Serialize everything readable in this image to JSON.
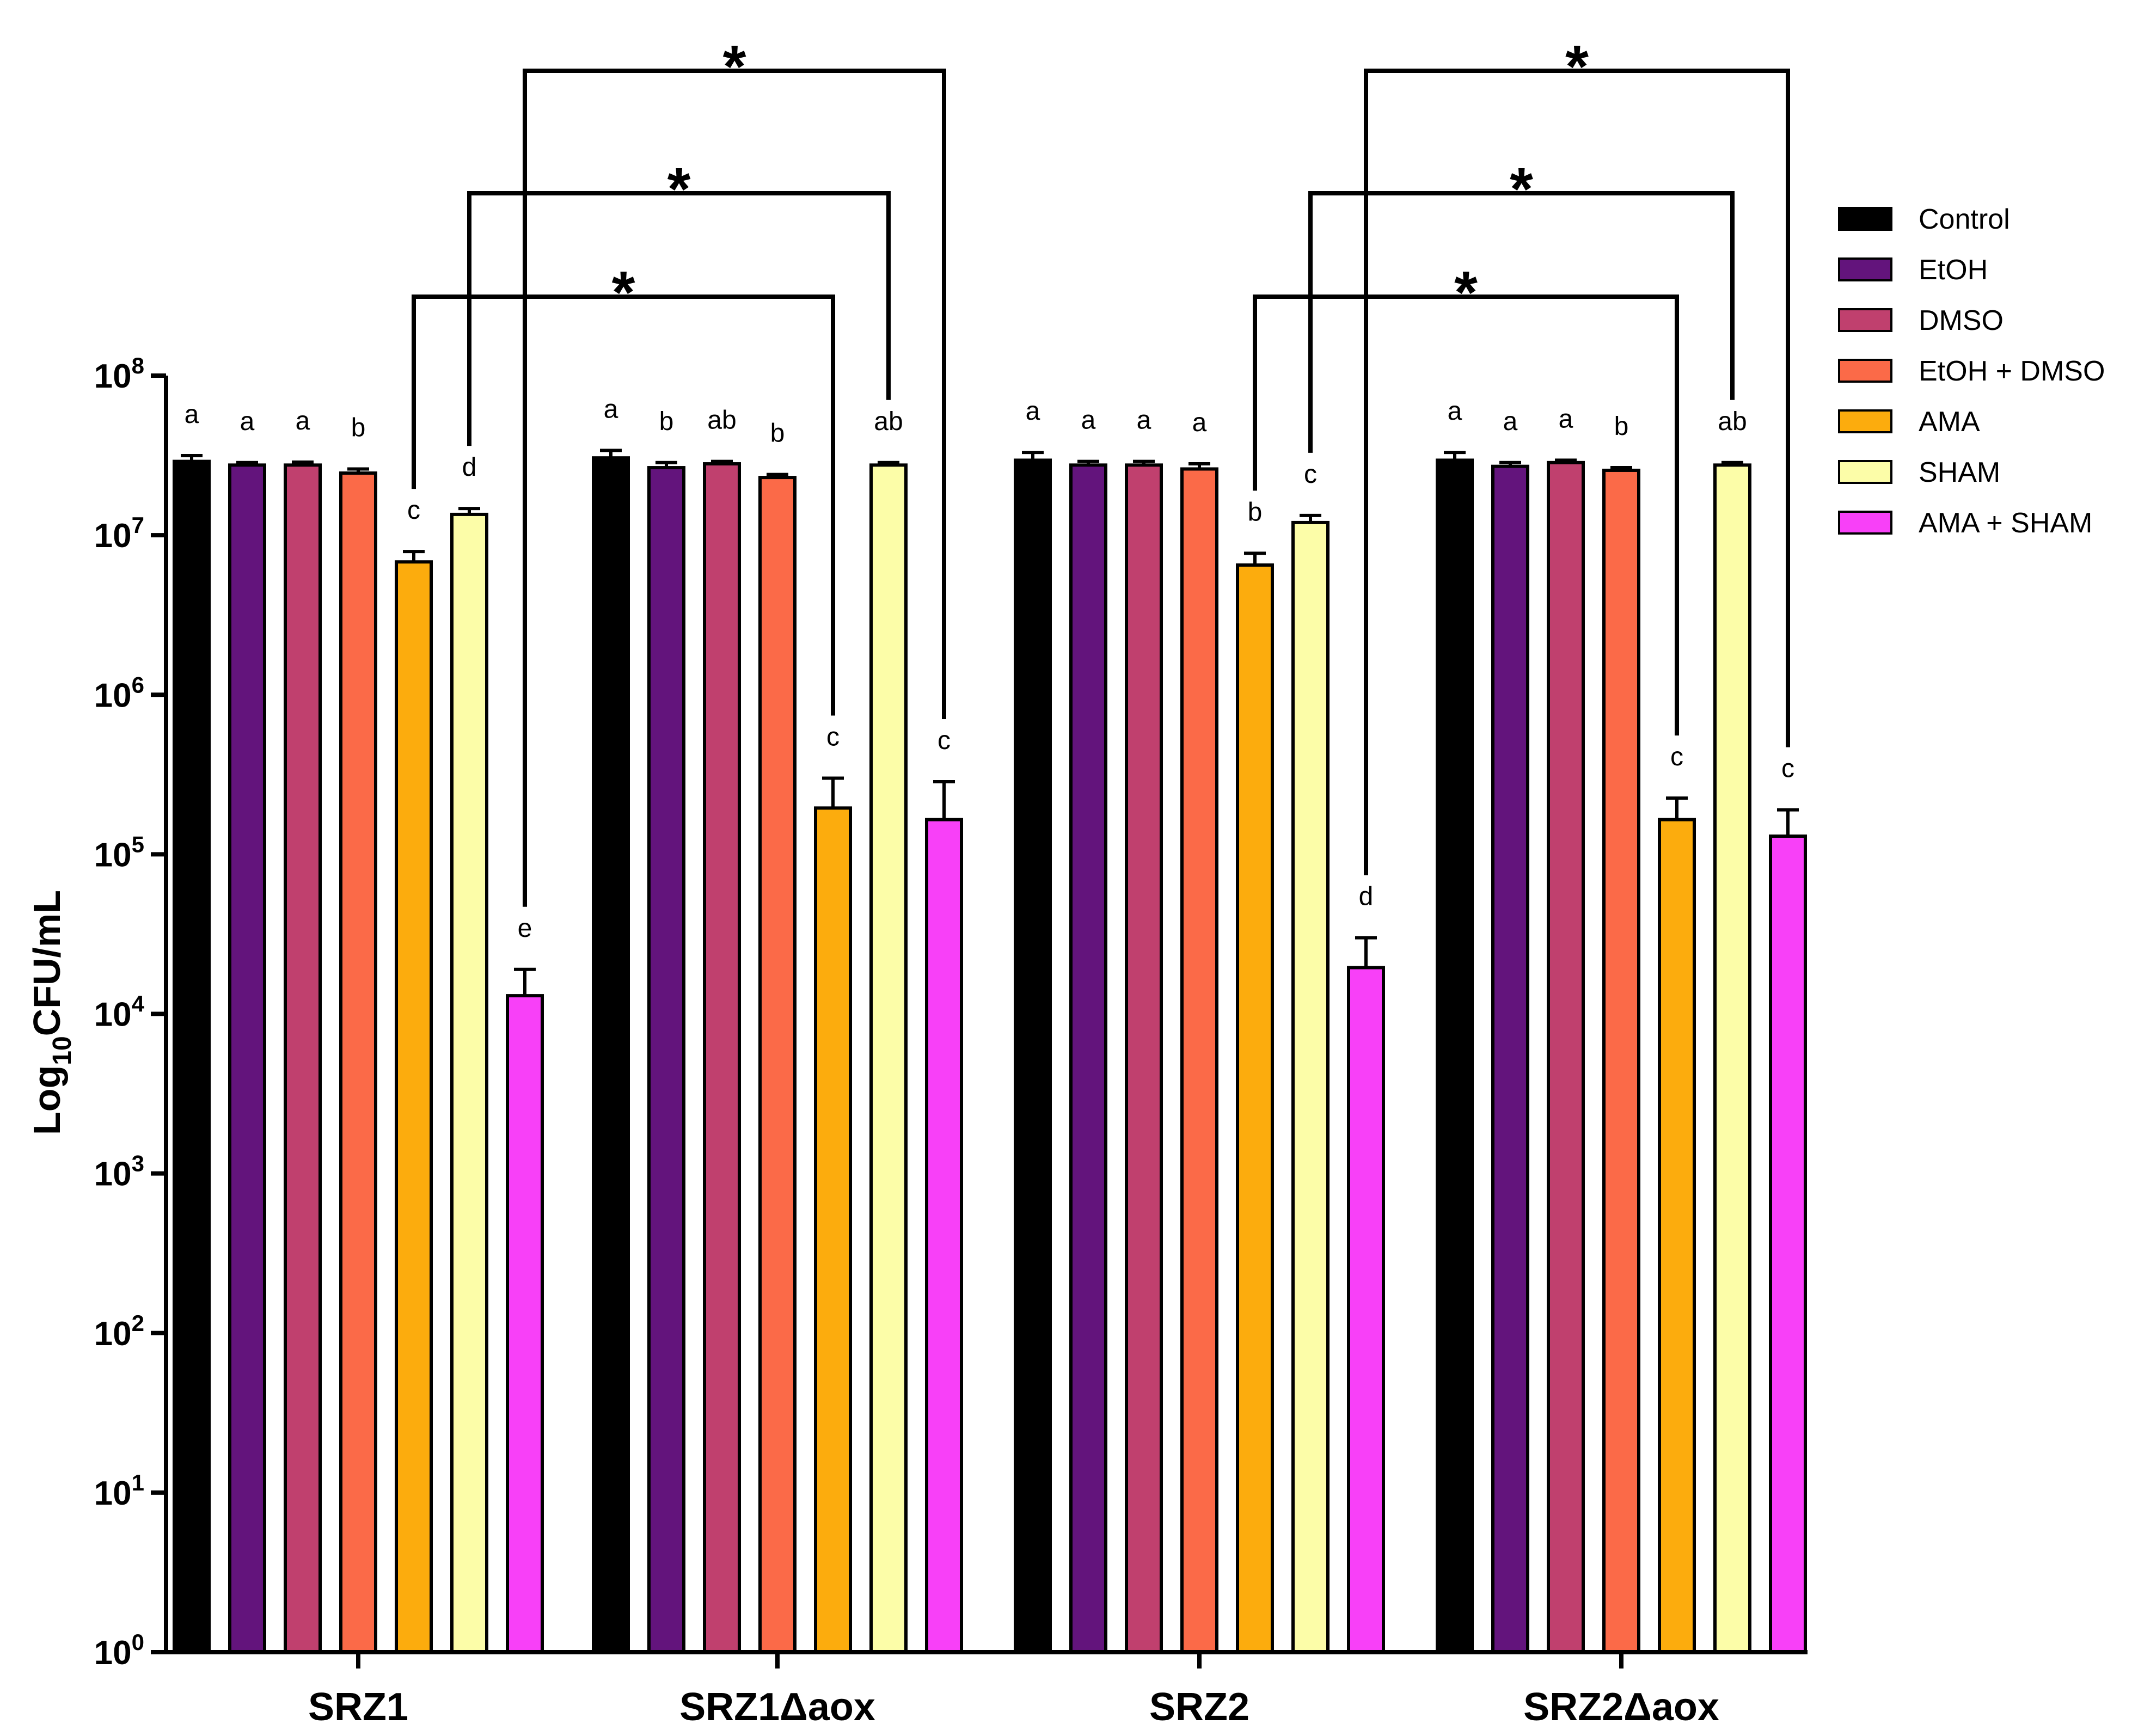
{
  "chart_data": {
    "type": "bar",
    "ylabel": "Log10CFU/mL",
    "ylabel_parts": {
      "prefix": "Log",
      "subscript": "10",
      "suffix": "CFU/mL"
    },
    "y_scale": "log",
    "ylim": [
      1,
      100000000
    ],
    "y_ticks": [
      {
        "base": "10",
        "exp": "0"
      },
      {
        "base": "10",
        "exp": "1"
      },
      {
        "base": "10",
        "exp": "2"
      },
      {
        "base": "10",
        "exp": "3"
      },
      {
        "base": "10",
        "exp": "4"
      },
      {
        "base": "10",
        "exp": "5"
      },
      {
        "base": "10",
        "exp": "6"
      },
      {
        "base": "10",
        "exp": "7"
      },
      {
        "base": "10",
        "exp": "8"
      }
    ],
    "categories": [
      "SRZ1",
      "SRZ1Δaox",
      "SRZ2",
      "SRZ2Δaox"
    ],
    "series": [
      {
        "name": "Control",
        "color": "#000000",
        "values": [
          29000000,
          30500000,
          29500000,
          29500000
        ],
        "errors": [
          2500000,
          3500000,
          3500000,
          3500000
        ],
        "letters": [
          "a",
          "a",
          "a",
          "a"
        ]
      },
      {
        "name": "EtOH",
        "color": "#63147c",
        "values": [
          27500000,
          26500000,
          27500000,
          27000000
        ],
        "errors": [
          1000000,
          2000000,
          1500000,
          1500000
        ],
        "letters": [
          "a",
          "b",
          "a",
          "a"
        ]
      },
      {
        "name": "DMSO",
        "color": "#c0406e",
        "values": [
          27500000,
          28000000,
          27500000,
          28500000
        ],
        "errors": [
          1200000,
          1000000,
          1500000,
          1000000
        ],
        "letters": [
          "a",
          "ab",
          "a",
          "a"
        ]
      },
      {
        "name": "EtOH + DMSO",
        "color": "#fb6a48",
        "values": [
          24500000,
          23000000,
          26000000,
          25500000
        ],
        "errors": [
          1500000,
          1000000,
          2000000,
          1000000
        ],
        "letters": [
          "b",
          "b",
          "a",
          "b"
        ]
      },
      {
        "name": "AMA",
        "color": "#fcac0d",
        "values": [
          6800000,
          195000,
          6500000,
          165000
        ],
        "errors": [
          1100000,
          105000,
          1200000,
          60000
        ],
        "letters": [
          "c",
          "c",
          "b",
          "c"
        ]
      },
      {
        "name": "SHAM",
        "color": "#fcfda8",
        "values": [
          13500000,
          27500000,
          12000000,
          27500000
        ],
        "errors": [
          1200000,
          1000000,
          1300000,
          1000000
        ],
        "letters": [
          "d",
          "ab",
          "c",
          "ab"
        ]
      },
      {
        "name": "AMA + SHAM",
        "color": "#f840f8",
        "values": [
          13000,
          165000,
          19500,
          130000
        ],
        "errors": [
          6000,
          120000,
          10500,
          60000
        ],
        "letters": [
          "e",
          "c",
          "d",
          "c"
        ]
      }
    ],
    "significance": [
      {
        "from": "SRZ1 AMA",
        "to": "SRZ1Δaox AMA",
        "label": "*"
      },
      {
        "from": "SRZ1 SHAM",
        "to": "SRZ1Δaox SHAM",
        "label": "*"
      },
      {
        "from": "SRZ1 AMA + SHAM",
        "to": "SRZ1Δaox AMA + SHAM",
        "label": "*"
      },
      {
        "from": "SRZ2 AMA",
        "to": "SRZ2Δaox AMA",
        "label": "*"
      },
      {
        "from": "SRZ2 SHAM",
        "to": "SRZ2Δaox SHAM",
        "label": "*"
      },
      {
        "from": "SRZ2 AMA + SHAM",
        "to": "SRZ2Δaox AMA + SHAM",
        "label": "*"
      }
    ],
    "legend_position": "right",
    "grid": false
  }
}
